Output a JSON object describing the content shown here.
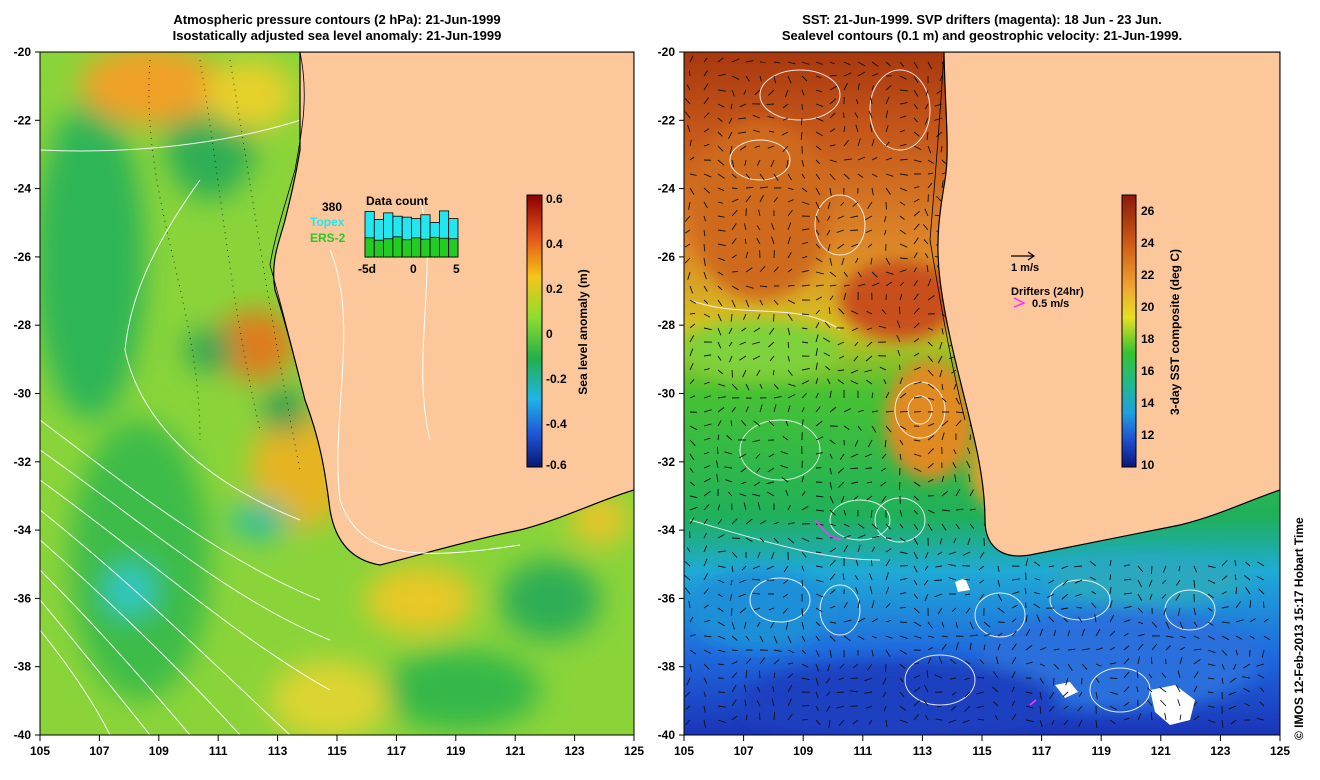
{
  "left_panel": {
    "title_line1": "Atmospheric pressure contours (2 hPa): 21-Jun-1999",
    "title_line2": "Isostatically adjusted sea level anomaly: 21-Jun-1999",
    "colorbar": {
      "label": "Sea level anomaly (m)",
      "ticks": [
        "0.6",
        "0.4",
        "0.2",
        "0",
        "-0.2",
        "-0.4",
        "-0.6"
      ],
      "range": [
        -0.6,
        0.6
      ]
    },
    "data_count": {
      "title": "Data count",
      "max_label": "380",
      "series": [
        {
          "name": "Topex",
          "color": "#22e6f0"
        },
        {
          "name": "ERS-2",
          "color": "#22cc22"
        }
      ],
      "x_ticks": [
        "-5d",
        "0",
        "5"
      ],
      "topex": [
        0.95,
        0.78,
        0.92,
        0.85,
        0.83,
        0.8,
        0.88,
        0.72,
        0.96,
        0.8
      ],
      "ers2": [
        0.4,
        0.35,
        0.38,
        0.42,
        0.36,
        0.4,
        0.37,
        0.41,
        0.39,
        0.38
      ]
    }
  },
  "right_panel": {
    "title_line1": "SST: 21-Jun-1999. SVP drifters (magenta): 18 Jun - 23 Jun.",
    "title_line2": "Sealevel contours (0.1 m) and geostrophic velocity: 21-Jun-1999.",
    "colorbar": {
      "label": "3-day SST composite (deg C)",
      "ticks": [
        "26",
        "24",
        "22",
        "20",
        "18",
        "16",
        "14",
        "12",
        "10"
      ],
      "range": [
        10,
        27
      ]
    },
    "velocity_legend": "1 m/s",
    "drifter_legend_title": "Drifters (24hr)",
    "drifter_legend_speed": "0.5 m/s"
  },
  "axes": {
    "x_ticks": [
      "105",
      "107",
      "109",
      "111",
      "113",
      "115",
      "117",
      "119",
      "121",
      "123",
      "125"
    ],
    "y_ticks": [
      "-20",
      "-22",
      "-24",
      "-26",
      "-28",
      "-30",
      "-32",
      "-34",
      "-36",
      "-38",
      "-40"
    ]
  },
  "colors": {
    "land": "#fbc79b",
    "ocean_ssh_base": "#7fd23c",
    "sst_warm": "#c85a14",
    "sst_cold": "#1f5ad6",
    "drifter": "#ff33ff"
  },
  "credit": "© IMOS 12-Feb-2013 15:17 Hobart Time"
}
